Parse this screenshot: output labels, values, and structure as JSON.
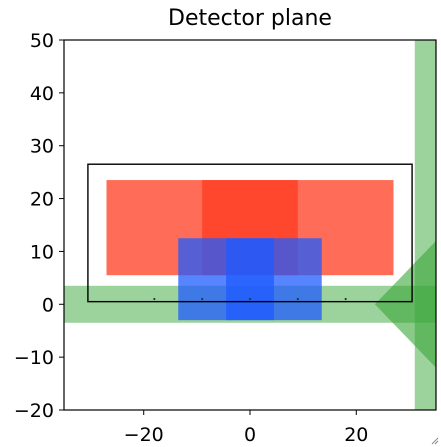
{
  "chart_data": {
    "type": "area",
    "title": "Detector plane",
    "xlabel": "",
    "ylabel": "",
    "xlim": [
      -35,
      35
    ],
    "ylim": [
      -20,
      50
    ],
    "xticks": [
      -20,
      0,
      20
    ],
    "yticks": [
      50,
      40,
      30,
      20,
      10,
      0,
      -10,
      -20
    ],
    "grid": false,
    "legend": "none",
    "colors": {
      "red": "#ff3b1f",
      "blue": "#1f5bff",
      "green": "#3aa63a",
      "frame": "#000000"
    },
    "frame_rectangle": {
      "x": [
        -30.5,
        30.5
      ],
      "y": [
        0.5,
        26.5
      ]
    },
    "red_rectangles": [
      {
        "x": [
          -27,
          9
        ],
        "y": [
          5.5,
          23.5
        ]
      },
      {
        "x": [
          -9,
          27
        ],
        "y": [
          5.5,
          23.5
        ]
      }
    ],
    "blue_rectangles": [
      {
        "x": [
          -13.5,
          4.5
        ],
        "y": [
          -3,
          12.5
        ]
      },
      {
        "x": [
          -4.5,
          13.5
        ],
        "y": [
          -3,
          12.5
        ]
      }
    ],
    "green_beams": [
      {
        "name": "",
        "x": [
          -35,
          35
        ],
        "y": [
          -3.5,
          3.5
        ]
      },
      {
        "name": "",
        "x": [
          31,
          35
        ],
        "y": [
          -20,
          50
        ]
      }
    ],
    "green_arrow": {
      "tip": [
        23.5,
        0
      ],
      "base_x": 35,
      "base_y": [
        -12,
        12
      ]
    },
    "marker_points": {
      "x": [
        -18,
        -9,
        0,
        9,
        18
      ],
      "y": [
        1,
        1,
        1,
        1,
        1
      ]
    }
  }
}
